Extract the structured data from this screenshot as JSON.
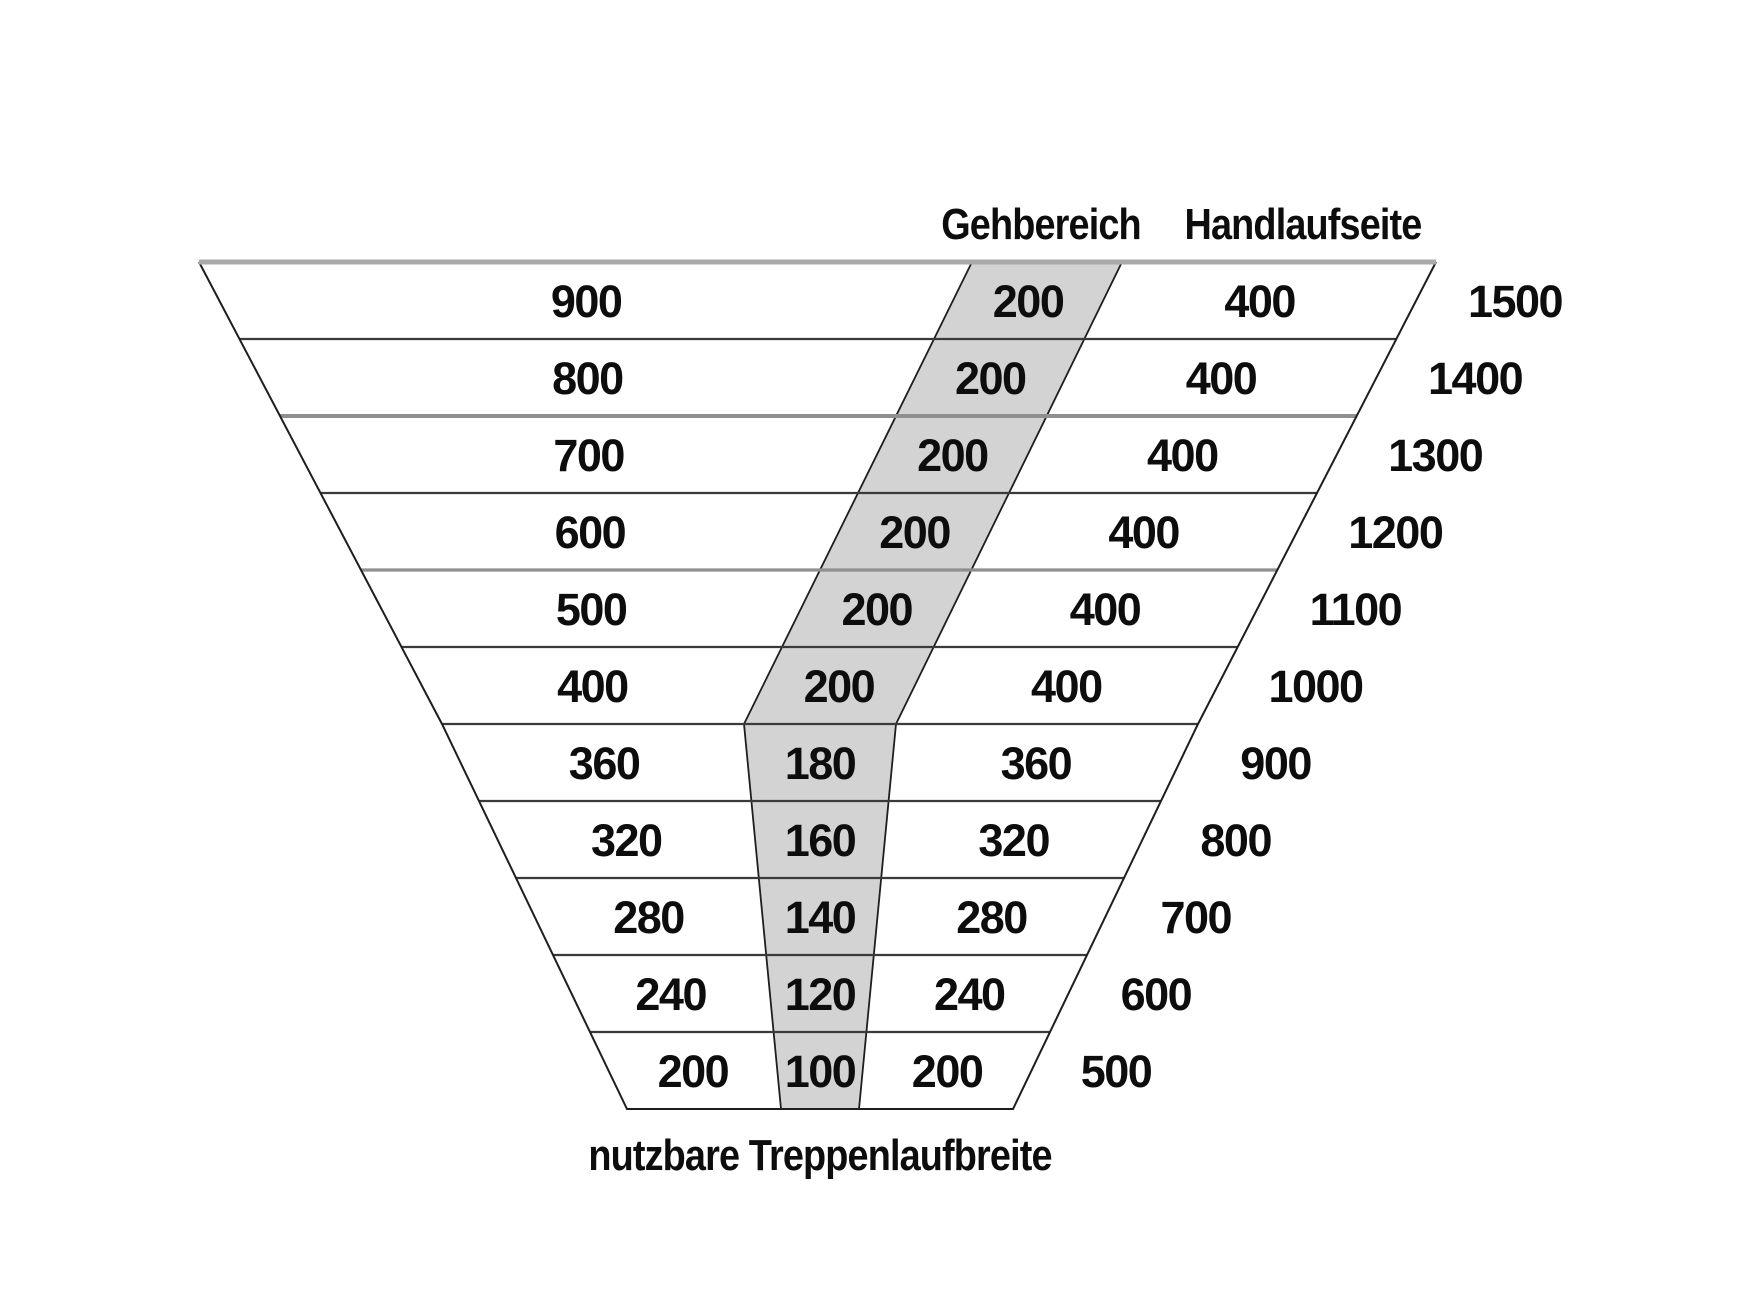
{
  "diagram": {
    "header": {
      "gehbereich": "Gehbereich",
      "handlaufseite": "Handlaufseite"
    },
    "footer": {
      "caption": "nutzbare Treppenlaufbreite"
    },
    "rows": [
      {
        "left": "900",
        "gehbereich": "200",
        "handlauf": "400",
        "total": "1500"
      },
      {
        "left": "800",
        "gehbereich": "200",
        "handlauf": "400",
        "total": "1400"
      },
      {
        "left": "700",
        "gehbereich": "200",
        "handlauf": "400",
        "total": "1300"
      },
      {
        "left": "600",
        "gehbereich": "200",
        "handlauf": "400",
        "total": "1200"
      },
      {
        "left": "500",
        "gehbereich": "200",
        "handlauf": "400",
        "total": "1100"
      },
      {
        "left": "400",
        "gehbereich": "200",
        "handlauf": "400",
        "total": "1000"
      },
      {
        "left": "360",
        "gehbereich": "180",
        "handlauf": "360",
        "total": "900"
      },
      {
        "left": "320",
        "gehbereich": "160",
        "handlauf": "320",
        "total": "800"
      },
      {
        "left": "280",
        "gehbereich": "140",
        "handlauf": "280",
        "total": "700"
      },
      {
        "left": "240",
        "gehbereich": "120",
        "handlauf": "240",
        "total": "600"
      },
      {
        "left": "200",
        "gehbereich": "100",
        "handlauf": "200",
        "total": "500"
      }
    ],
    "colors": {
      "band_fill": "#d3d3d3",
      "edge": "#1e1e1e",
      "divider": "#3a3a3a",
      "divider_light": "#8f8f8f",
      "top_edge": "#a9a9a9",
      "text": "#0d0d0d",
      "background": "#ffffff"
    }
  }
}
